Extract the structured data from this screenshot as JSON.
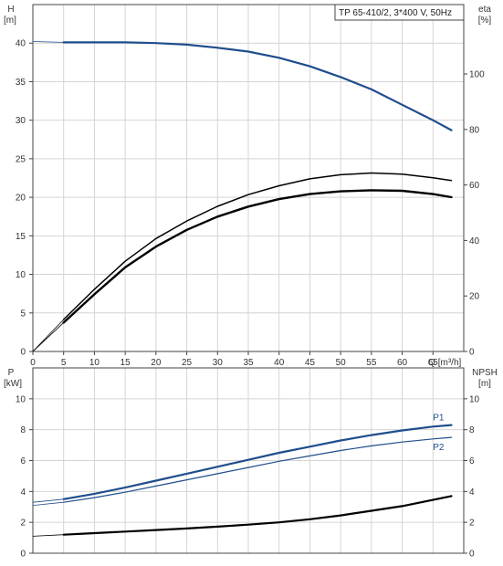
{
  "colors": {
    "blue": "#1f4e8c",
    "black": "#000000",
    "grid": "#d4d4d4",
    "frame": "#444444",
    "bg": "#ffffff"
  },
  "chart_data": [
    {
      "id": "top",
      "type": "line",
      "title": "TP 65-410/2, 3*400 V, 50Hz",
      "xlabel": "Q [m³/h]",
      "ylabel": "H",
      "ylabel_unit": "[m]",
      "y2label": "eta",
      "y2label_unit": "[%]",
      "xlim": [
        0,
        70
      ],
      "ylim": [
        0,
        45
      ],
      "y2lim": [
        0,
        125
      ],
      "grid": true,
      "x_ticks": [
        "0",
        "5",
        "10",
        "15",
        "20",
        "25",
        "30",
        "35",
        "40",
        "45",
        "50",
        "55",
        "60",
        "65"
      ],
      "y_ticks": [
        "0",
        "5",
        "10",
        "15",
        "20",
        "25",
        "30",
        "35",
        "40"
      ],
      "y2_ticks": [
        "0",
        "20",
        "40",
        "60",
        "80",
        "100"
      ],
      "series": [
        {
          "key": "H",
          "axis": "y",
          "color": "blue",
          "width": 2.2,
          "x": [
            5,
            10,
            15,
            20,
            25,
            30,
            35,
            40,
            45,
            50,
            55,
            60,
            65,
            68
          ],
          "y": [
            40.1,
            40.1,
            40.1,
            40.0,
            39.8,
            39.4,
            38.9,
            38.1,
            37.0,
            35.6,
            34.0,
            32.0,
            30.0,
            28.7
          ],
          "ext_x": [
            0,
            5
          ],
          "ext_y": [
            40.2,
            40.1
          ]
        },
        {
          "key": "eta_upper",
          "axis": "y2",
          "color": "black",
          "width": 1.5,
          "x": [
            5,
            10,
            15,
            20,
            25,
            30,
            35,
            40,
            45,
            50,
            55,
            60,
            65,
            68
          ],
          "y": [
            11.5,
            22.4,
            32.5,
            40.7,
            47.0,
            52.3,
            56.5,
            59.7,
            62.2,
            63.7,
            64.3,
            63.9,
            62.6,
            61.6
          ],
          "ext_x": [
            0,
            5
          ],
          "ext_y": [
            0,
            11.5
          ]
        },
        {
          "key": "eta_lower",
          "axis": "y2",
          "color": "black",
          "width": 2.4,
          "x": [
            5,
            10,
            15,
            20,
            25,
            30,
            35,
            40,
            45,
            50,
            55,
            60,
            65,
            68
          ],
          "y": [
            10.4,
            20.6,
            30.3,
            37.8,
            43.8,
            48.6,
            52.2,
            54.9,
            56.7,
            57.7,
            58.1,
            57.9,
            56.7,
            55.6
          ],
          "ext_x": [
            0,
            5
          ],
          "ext_y": [
            0,
            10.4
          ]
        }
      ]
    },
    {
      "id": "bottom",
      "type": "line",
      "ylabel": "P",
      "ylabel_unit": "[kW]",
      "y2label": "NPSH",
      "y2label_unit": "[m]",
      "xlim": [
        0,
        70
      ],
      "ylim": [
        0,
        12
      ],
      "y2lim": [
        0,
        12
      ],
      "grid": true,
      "y_ticks": [
        "0",
        "2",
        "4",
        "6",
        "8",
        "10"
      ],
      "y2_ticks": [
        "0",
        "2",
        "4",
        "6",
        "8",
        "10"
      ],
      "series": [
        {
          "key": "P1",
          "name": "P1",
          "axis": "y",
          "color": "blue",
          "width": 2.2,
          "x": [
            5,
            10,
            15,
            20,
            25,
            30,
            35,
            40,
            45,
            50,
            55,
            60,
            65,
            68
          ],
          "y": [
            3.5,
            3.85,
            4.25,
            4.7,
            5.15,
            5.6,
            6.05,
            6.5,
            6.9,
            7.3,
            7.65,
            7.95,
            8.2,
            8.3
          ],
          "ext_x": [
            0,
            5
          ],
          "ext_y": [
            3.3,
            3.5
          ]
        },
        {
          "key": "P2",
          "name": "P2",
          "axis": "y",
          "color": "blue",
          "width": 1.2,
          "x": [
            5,
            10,
            15,
            20,
            25,
            30,
            35,
            40,
            45,
            50,
            55,
            60,
            65,
            68
          ],
          "y": [
            3.3,
            3.6,
            3.95,
            4.35,
            4.75,
            5.15,
            5.55,
            5.95,
            6.3,
            6.65,
            6.95,
            7.2,
            7.4,
            7.5
          ],
          "ext_x": [
            0,
            5
          ],
          "ext_y": [
            3.1,
            3.3
          ]
        },
        {
          "key": "NPSH",
          "axis": "y2",
          "color": "black",
          "width": 2.2,
          "x": [
            5,
            10,
            15,
            20,
            25,
            30,
            35,
            40,
            45,
            50,
            55,
            60,
            65,
            68
          ],
          "y": [
            1.2,
            1.3,
            1.4,
            1.5,
            1.6,
            1.72,
            1.85,
            2.0,
            2.2,
            2.45,
            2.75,
            3.05,
            3.45,
            3.7
          ],
          "ext_x": [
            0,
            5
          ],
          "ext_y": [
            1.1,
            1.2
          ]
        }
      ]
    }
  ]
}
